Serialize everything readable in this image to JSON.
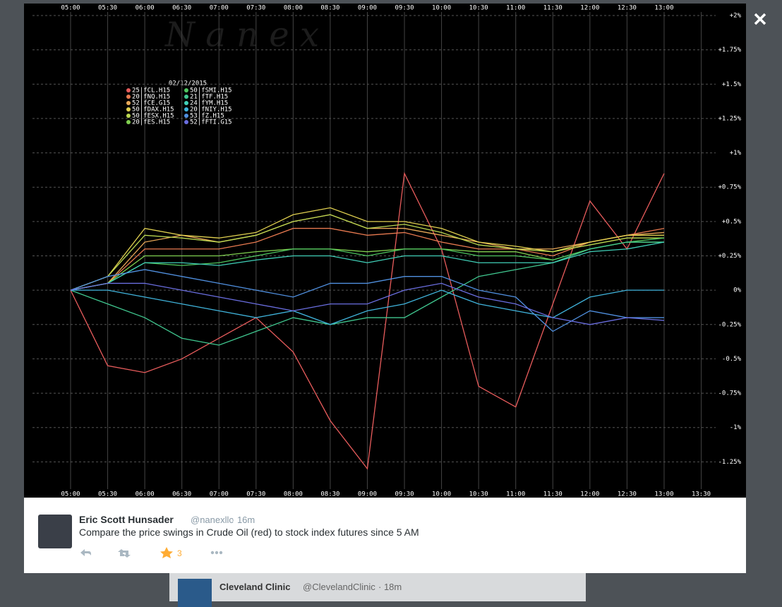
{
  "chart_data": {
    "type": "line",
    "watermark": "N a n e x",
    "legend_title": "02/12/2015",
    "x": [
      "05:00",
      "05:30",
      "06:00",
      "06:30",
      "07:00",
      "07:30",
      "08:00",
      "08:30",
      "09:00",
      "09:30",
      "10:00",
      "10:30",
      "11:00",
      "11:30",
      "12:00",
      "12:30",
      "13:00"
    ],
    "xticks": [
      "05:00",
      "05:30",
      "06:00",
      "06:30",
      "07:00",
      "07:30",
      "08:00",
      "08:30",
      "09:00",
      "09:30",
      "10:00",
      "10:30",
      "11:00",
      "11:30",
      "12:00",
      "12:30",
      "13:00",
      "13:30"
    ],
    "ylim": [
      -1.5,
      2
    ],
    "yticks": [
      {
        "value": 2,
        "label": "+2%"
      },
      {
        "value": 1.75,
        "label": "+1.75%"
      },
      {
        "value": 1.5,
        "label": "+1.5%"
      },
      {
        "value": 1.25,
        "label": "+1.25%"
      },
      {
        "value": 1,
        "label": "+1%"
      },
      {
        "value": 0.75,
        "label": "+0.75%"
      },
      {
        "value": 0.5,
        "label": "+0.5%"
      },
      {
        "value": 0.25,
        "label": "+0.25%"
      },
      {
        "value": 0,
        "label": "0%"
      },
      {
        "value": -0.25,
        "label": "-0.25%"
      },
      {
        "value": -0.5,
        "label": "-0.5%"
      },
      {
        "value": -0.75,
        "label": "-0.75%"
      },
      {
        "value": -1,
        "label": "-1%"
      },
      {
        "value": -1.25,
        "label": "-1.25%"
      }
    ],
    "grid": true,
    "series": [
      {
        "name": "25|fCL.H15",
        "color": "#e85c5c",
        "values": [
          0,
          -0.55,
          -0.6,
          -0.5,
          -0.35,
          -0.2,
          -0.45,
          -0.95,
          -1.3,
          0.85,
          0.3,
          -0.7,
          -0.85,
          -0.1,
          0.65,
          0.3,
          0.85
        ]
      },
      {
        "name": "20|fNQ.H15",
        "color": "#e87a50",
        "values": [
          0,
          0.05,
          0.3,
          0.3,
          0.3,
          0.35,
          0.45,
          0.45,
          0.4,
          0.42,
          0.35,
          0.3,
          0.3,
          0.25,
          0.35,
          0.4,
          0.45
        ]
      },
      {
        "name": "52|fCE.G15",
        "color": "#e8a858",
        "values": [
          0,
          0.05,
          0.35,
          0.4,
          0.35,
          0.4,
          0.5,
          0.55,
          0.45,
          0.45,
          0.4,
          0.35,
          0.3,
          0.3,
          0.35,
          0.4,
          0.42
        ]
      },
      {
        "name": "50|fDAX.H15",
        "color": "#e0d050",
        "values": [
          0,
          0.1,
          0.45,
          0.4,
          0.38,
          0.42,
          0.55,
          0.6,
          0.5,
          0.5,
          0.45,
          0.35,
          0.32,
          0.28,
          0.35,
          0.4,
          0.4
        ]
      },
      {
        "name": "50|fESX.H15",
        "color": "#bcd850",
        "values": [
          0,
          0.1,
          0.4,
          0.38,
          0.35,
          0.4,
          0.5,
          0.55,
          0.45,
          0.48,
          0.42,
          0.33,
          0.3,
          0.28,
          0.33,
          0.38,
          0.38
        ]
      },
      {
        "name": "20|fES.H15",
        "color": "#80d050",
        "values": [
          0,
          0.05,
          0.25,
          0.25,
          0.25,
          0.28,
          0.3,
          0.3,
          0.28,
          0.3,
          0.3,
          0.28,
          0.28,
          0.22,
          0.3,
          0.35,
          0.35
        ]
      },
      {
        "name": "50|fSMI.H15",
        "color": "#50c860",
        "values": [
          0,
          0.05,
          0.2,
          0.18,
          0.2,
          0.25,
          0.3,
          0.3,
          0.25,
          0.3,
          0.3,
          0.25,
          0.25,
          0.22,
          0.3,
          0.35,
          0.38
        ]
      },
      {
        "name": "21|fTF.H15",
        "color": "#40c890",
        "values": [
          0,
          -0.1,
          -0.2,
          -0.35,
          -0.4,
          -0.3,
          -0.2,
          -0.25,
          -0.2,
          -0.2,
          -0.05,
          0.1,
          0.15,
          0.2,
          0.3,
          0.35,
          0.35
        ]
      },
      {
        "name": "24|fYM.H15",
        "color": "#40d0b8",
        "values": [
          0,
          0.05,
          0.2,
          0.2,
          0.18,
          0.22,
          0.25,
          0.25,
          0.2,
          0.25,
          0.25,
          0.2,
          0.2,
          0.2,
          0.28,
          0.3,
          0.35
        ]
      },
      {
        "name": "20|fNIY.H15",
        "color": "#40b4dc",
        "values": [
          0,
          0,
          -0.05,
          -0.1,
          -0.15,
          -0.2,
          -0.15,
          -0.25,
          -0.15,
          -0.1,
          0,
          -0.1,
          -0.15,
          -0.2,
          -0.05,
          0,
          0
        ]
      },
      {
        "name": "53|fZ.H15",
        "color": "#5090e0",
        "values": [
          0,
          0.1,
          0.15,
          0.1,
          0.05,
          0,
          -0.05,
          0.05,
          0.05,
          0.1,
          0.1,
          0,
          -0.05,
          -0.3,
          -0.15,
          -0.2,
          -0.2
        ]
      },
      {
        "name": "52|fFTI.G15",
        "color": "#6a6ee0",
        "values": [
          0,
          0.05,
          0.05,
          0,
          -0.05,
          -0.1,
          -0.15,
          -0.1,
          -0.1,
          0,
          0.05,
          -0.05,
          -0.1,
          -0.2,
          -0.25,
          -0.2,
          -0.22
        ]
      }
    ]
  },
  "tweet": {
    "author": "Eric Scott Hunsader",
    "handle": "@nanexllc",
    "time": "· 16m",
    "text": "Compare the price swings in Crude Oil (red) to stock index futures since 5 AM",
    "favorites": "3"
  },
  "background": {
    "author": "Cleveland Clinic",
    "handle": "@ClevelandClinic",
    "time": "· 18m"
  }
}
